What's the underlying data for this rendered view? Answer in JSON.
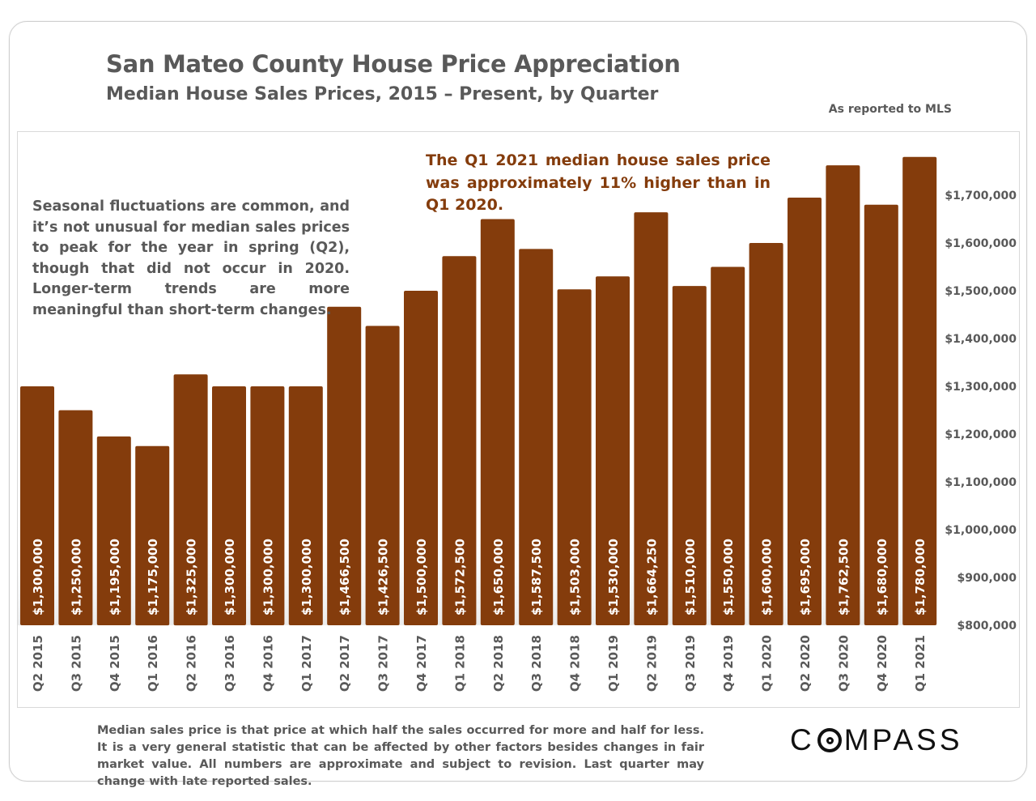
{
  "header": {
    "title": "San Mateo County House Price Appreciation",
    "subtitle": "Median House Sales Prices, 2015 – Present, by Quarter",
    "source_note": "As reported to MLS"
  },
  "annotations": {
    "left": "Seasonal fluctuations are common, and it’s not unusual for median sales prices to peak for the year in spring (Q2), though that did not occur in 2020. Longer-term trends are more meaningful than short-term changes.",
    "right": "The Q1 2021 median house sales price was approximately 11% higher than in Q1 2020."
  },
  "footer": {
    "disclaimer": "Median sales price is that price at which half the sales occurred for more and half for less. It is a very general statistic that can be affected by other factors besides changes in fair market value. All numbers are approximate and subject to revision. Last quarter may change with late reported sales.",
    "logo_text": "COMPASS"
  },
  "colors": {
    "bar": "#843c0c",
    "bar_label": "#ffffff",
    "axis_text": "#595959",
    "callout": "#843c0c"
  },
  "chart_data": {
    "type": "bar",
    "title": "San Mateo County House Price Appreciation",
    "subtitle": "Median House Sales Prices, 2015 – Present, by Quarter",
    "xlabel": "",
    "ylabel": "",
    "ylim": [
      800000,
      1800000
    ],
    "y_axis_position": "right",
    "grid": false,
    "categories": [
      "Q2 2015",
      "Q3 2015",
      "Q4 2015",
      "Q1 2016",
      "Q2 2016",
      "Q3 2016",
      "Q4 2016",
      "Q1 2017",
      "Q2 2017",
      "Q3 2017",
      "Q4 2017",
      "Q1 2018",
      "Q2 2018",
      "Q3 2018",
      "Q4 2018",
      "Q1 2019",
      "Q2 2019",
      "Q3 2019",
      "Q4 2019",
      "Q1 2020",
      "Q2 2020",
      "Q3 2020",
      "Q4 2020",
      "Q1 2021"
    ],
    "values": [
      1300000,
      1250000,
      1195000,
      1175000,
      1325000,
      1300000,
      1300000,
      1300000,
      1466500,
      1426500,
      1500000,
      1572500,
      1650000,
      1587500,
      1503000,
      1530000,
      1664250,
      1510000,
      1550000,
      1600000,
      1695000,
      1762500,
      1680000,
      1780000
    ],
    "data_labels": [
      "$1,300,000",
      "$1,250,000",
      "$1,195,000",
      "$1,175,000",
      "$1,325,000",
      "$1,300,000",
      "$1,300,000",
      "$1,300,000",
      "$1,466,500",
      "$1,426,500",
      "$1,500,000",
      "$1,572,500",
      "$1,650,000",
      "$1,587,500",
      "$1,503,000",
      "$1,530,000",
      "$1,664,250",
      "$1,510,000",
      "$1,550,000",
      "$1,600,000",
      "$1,695,000",
      "$1,762,500",
      "$1,680,000",
      "$1,780,000"
    ],
    "y_ticks": [
      800000,
      900000,
      1000000,
      1100000,
      1200000,
      1300000,
      1400000,
      1500000,
      1600000,
      1700000
    ],
    "y_tick_labels": [
      "$800,000",
      "$900,000",
      "$1,000,000",
      "$1,100,000",
      "$1,200,000",
      "$1,300,000",
      "$1,400,000",
      "$1,500,000",
      "$1,600,000",
      "$1,700,000"
    ]
  }
}
